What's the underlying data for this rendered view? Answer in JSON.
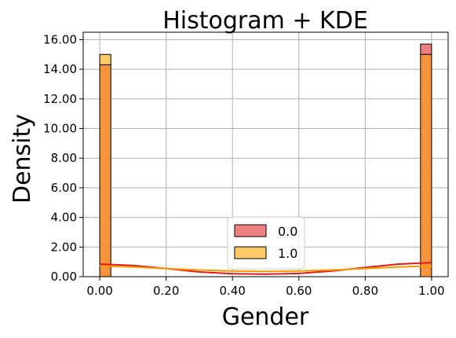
{
  "chart_data": {
    "type": "histogram",
    "title": "Histogram + KDE",
    "xlabel": "Gender",
    "ylabel": "Density",
    "xlim": [
      -0.05,
      1.05
    ],
    "ylim": [
      0,
      16.5
    ],
    "xticks": [
      "0.00",
      "0.20",
      "0.40",
      "0.60",
      "0.80",
      "1.00"
    ],
    "xtick_values": [
      0,
      0.2,
      0.4,
      0.6,
      0.8,
      1.0
    ],
    "yticks": [
      "0.00",
      "2.00",
      "4.00",
      "6.00",
      "8.00",
      "10.00",
      "12.00",
      "14.00",
      "16.00"
    ],
    "ytick_values": [
      0,
      2,
      4,
      6,
      8,
      10,
      12,
      14,
      16
    ],
    "grid": true,
    "legend_position": "lower center",
    "series": [
      {
        "name": "0.0",
        "color": "#f08080",
        "kde_color": "#dd1c1c",
        "bins": [
          {
            "x0": 0.0,
            "x1": 0.0333,
            "density": 14.3
          },
          {
            "x0": 0.9667,
            "x1": 1.0,
            "density": 15.7
          }
        ],
        "kde": [
          [
            0.0,
            0.85
          ],
          [
            0.1,
            0.76
          ],
          [
            0.2,
            0.55
          ],
          [
            0.3,
            0.32
          ],
          [
            0.4,
            0.2
          ],
          [
            0.5,
            0.17
          ],
          [
            0.6,
            0.22
          ],
          [
            0.7,
            0.38
          ],
          [
            0.8,
            0.62
          ],
          [
            0.9,
            0.85
          ],
          [
            1.0,
            0.95
          ]
        ]
      },
      {
        "name": "1.0",
        "color": "#ffc966",
        "kde_color": "#ff9900",
        "bins": [
          {
            "x0": 0.0,
            "x1": 0.0333,
            "density": 15.0
          },
          {
            "x0": 0.9667,
            "x1": 1.0,
            "density": 15.0
          }
        ],
        "kde": [
          [
            0.0,
            0.72
          ],
          [
            0.1,
            0.66
          ],
          [
            0.2,
            0.55
          ],
          [
            0.3,
            0.45
          ],
          [
            0.4,
            0.38
          ],
          [
            0.5,
            0.36
          ],
          [
            0.6,
            0.38
          ],
          [
            0.7,
            0.45
          ],
          [
            0.8,
            0.55
          ],
          [
            0.9,
            0.66
          ],
          [
            1.0,
            0.72
          ]
        ]
      }
    ],
    "overlap_color": "#f7953f"
  }
}
